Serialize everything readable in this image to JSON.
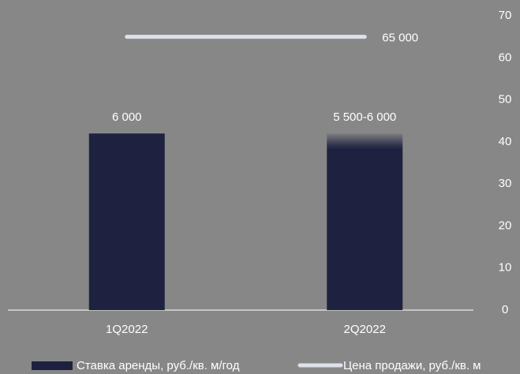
{
  "chart_data": {
    "type": "bar",
    "categories": [
      "1Q2022",
      "2Q2022"
    ],
    "ylim": [
      0,
      10000
    ],
    "y2lim": [
      0,
      70
    ],
    "y2ticks": [
      0,
      10,
      20,
      30,
      40,
      50,
      60,
      70
    ],
    "legend": "bottom",
    "series": [
      {
        "name": "Ставка аренды, руб./кв. м/год",
        "color": "#1e2140",
        "type": "bar",
        "values": [
          6000,
          6000
        ],
        "range_low": [
          null,
          5500
        ],
        "value_labels": [
          "6 000",
          "5 500-6 000"
        ]
      },
      {
        "name": "Цена продажи, руб./кв. м",
        "color": "#dde1ea",
        "type": "line",
        "axis": "y2",
        "values": [
          65,
          65
        ],
        "value_labels": [
          null,
          "65 000"
        ]
      }
    ]
  }
}
